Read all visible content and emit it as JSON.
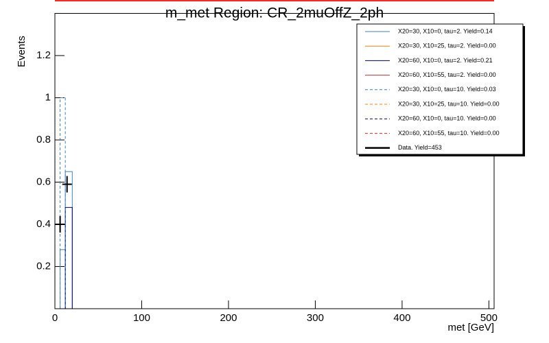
{
  "chart_data": {
    "type": "histogram",
    "title": "m_met Region: CR_2muOffZ_2ph",
    "x_label": "met [GeV]",
    "y_label": "Events",
    "bins": [
      0,
      6,
      12,
      20,
      500
    ],
    "series": [
      {
        "name": "X20=30, X10=0, tau=2. Yield=0.14",
        "color": "#3f7fbf",
        "dash": false,
        "values": [
          0,
          0.28,
          0.65,
          0
        ]
      },
      {
        "name": "X20=30, X10=25, tau=2. Yield=0.00",
        "color": "#ff7f0e",
        "dash": false,
        "values": [
          0,
          0,
          0,
          0
        ]
      },
      {
        "name": "X20=60, X10=0, tau=2. Yield=0.21",
        "color": "#00005f",
        "dash": false,
        "values": [
          0,
          0,
          0.48,
          0
        ]
      },
      {
        "name": "X20=60, X10=55, tau=2. Yield=0.00",
        "color": "#d62728",
        "dash": false,
        "values": [
          0,
          0,
          0,
          0
        ]
      },
      {
        "name": "X20=30, X10=0, tau=10. Yield=0.03",
        "color": "#3f7fbf",
        "dash": true,
        "values": [
          0,
          1.0,
          0,
          0
        ]
      },
      {
        "name": "X20=30, X10=25, tau=10. Yield=0.00",
        "color": "#ff7f0e",
        "dash": true,
        "values": [
          0,
          0,
          0,
          0
        ]
      },
      {
        "name": "X20=60, X10=0, tau=10. Yield=0.00",
        "color": "#00005f",
        "dash": true,
        "values": [
          0,
          0,
          0,
          0
        ]
      },
      {
        "name": "X20=60, X10=55, tau=10. Yield=0.00",
        "color": "#d62728",
        "dash": true,
        "values": [
          0,
          0,
          0,
          0
        ]
      }
    ],
    "data": {
      "name": "Data. Yield=453",
      "color": "#000000",
      "x": [
        6,
        14
      ],
      "values": [
        0.4,
        0.59
      ]
    },
    "xlim": [
      0,
      506
    ],
    "ylim": [
      0,
      1.4
    ],
    "xticks": [
      0,
      100,
      200,
      300,
      400,
      500
    ],
    "yticks": [
      0.2,
      0.4,
      0.6,
      0.8,
      1,
      1.2
    ],
    "legend": "top-right"
  }
}
